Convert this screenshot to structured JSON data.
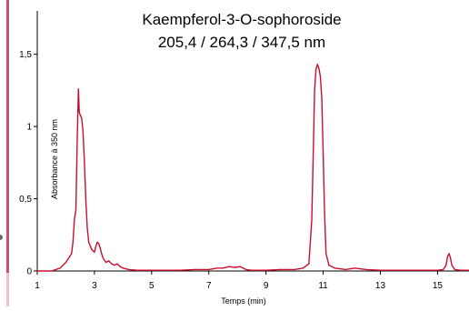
{
  "chart_data": {
    "type": "line",
    "title": "Kaempferol-3-O-sophoroside",
    "subtitle": "205,4 / 264,3 / 347,5 nm",
    "xlabel": "Temps (min)",
    "ylabel": "Absorbance à 350 nm",
    "xlim": [
      1,
      16.1
    ],
    "ylim": [
      0,
      1.8
    ],
    "xticks": [
      "1",
      "3",
      "5",
      "7",
      "9",
      "11",
      "13",
      "15"
    ],
    "yticks": [
      "0",
      "0,5",
      "1",
      "1,5"
    ],
    "line_color": "#c8102e",
    "series": [
      {
        "x": [
          1.0,
          1.5,
          1.8,
          2.0,
          2.1,
          2.2,
          2.25,
          2.3,
          2.35,
          2.4,
          2.44,
          2.47,
          2.5,
          2.55,
          2.6,
          2.65,
          2.7,
          2.75,
          2.8,
          2.9,
          3.0,
          3.05,
          3.1,
          3.15,
          3.2,
          3.25,
          3.3,
          3.4,
          3.5,
          3.6,
          3.7,
          3.8,
          3.9,
          4.0,
          4.2,
          4.5,
          5.0,
          5.5,
          6.0,
          6.5,
          7.0,
          7.3,
          7.5,
          7.7,
          7.9,
          8.1,
          8.3,
          8.5,
          9.0,
          9.5,
          10.0,
          10.3,
          10.5,
          10.6,
          10.65,
          10.7,
          10.75,
          10.8,
          10.85,
          10.9,
          10.95,
          11.0,
          11.05,
          11.1,
          11.2,
          11.4,
          11.8,
          12.1,
          12.5,
          13.0,
          14.0,
          15.0,
          15.2,
          15.3,
          15.35,
          15.4,
          15.45,
          15.5,
          15.6,
          15.8,
          16.1
        ],
        "y": [
          0.0,
          0.0,
          0.02,
          0.06,
          0.09,
          0.12,
          0.2,
          0.36,
          0.42,
          0.92,
          1.26,
          1.1,
          1.08,
          1.06,
          0.97,
          0.75,
          0.48,
          0.3,
          0.2,
          0.15,
          0.13,
          0.17,
          0.2,
          0.19,
          0.16,
          0.12,
          0.09,
          0.06,
          0.07,
          0.05,
          0.04,
          0.05,
          0.03,
          0.02,
          0.01,
          0.005,
          0.005,
          0.005,
          0.005,
          0.01,
          0.01,
          0.02,
          0.02,
          0.03,
          0.025,
          0.03,
          0.01,
          0.005,
          0.005,
          0.01,
          0.01,
          0.02,
          0.05,
          0.35,
          0.8,
          1.25,
          1.4,
          1.43,
          1.4,
          1.35,
          1.2,
          0.8,
          0.4,
          0.12,
          0.04,
          0.02,
          0.01,
          0.02,
          0.01,
          0.005,
          0.005,
          0.005,
          0.01,
          0.04,
          0.1,
          0.12,
          0.09,
          0.04,
          0.01,
          0.005,
          0.005
        ]
      }
    ]
  }
}
